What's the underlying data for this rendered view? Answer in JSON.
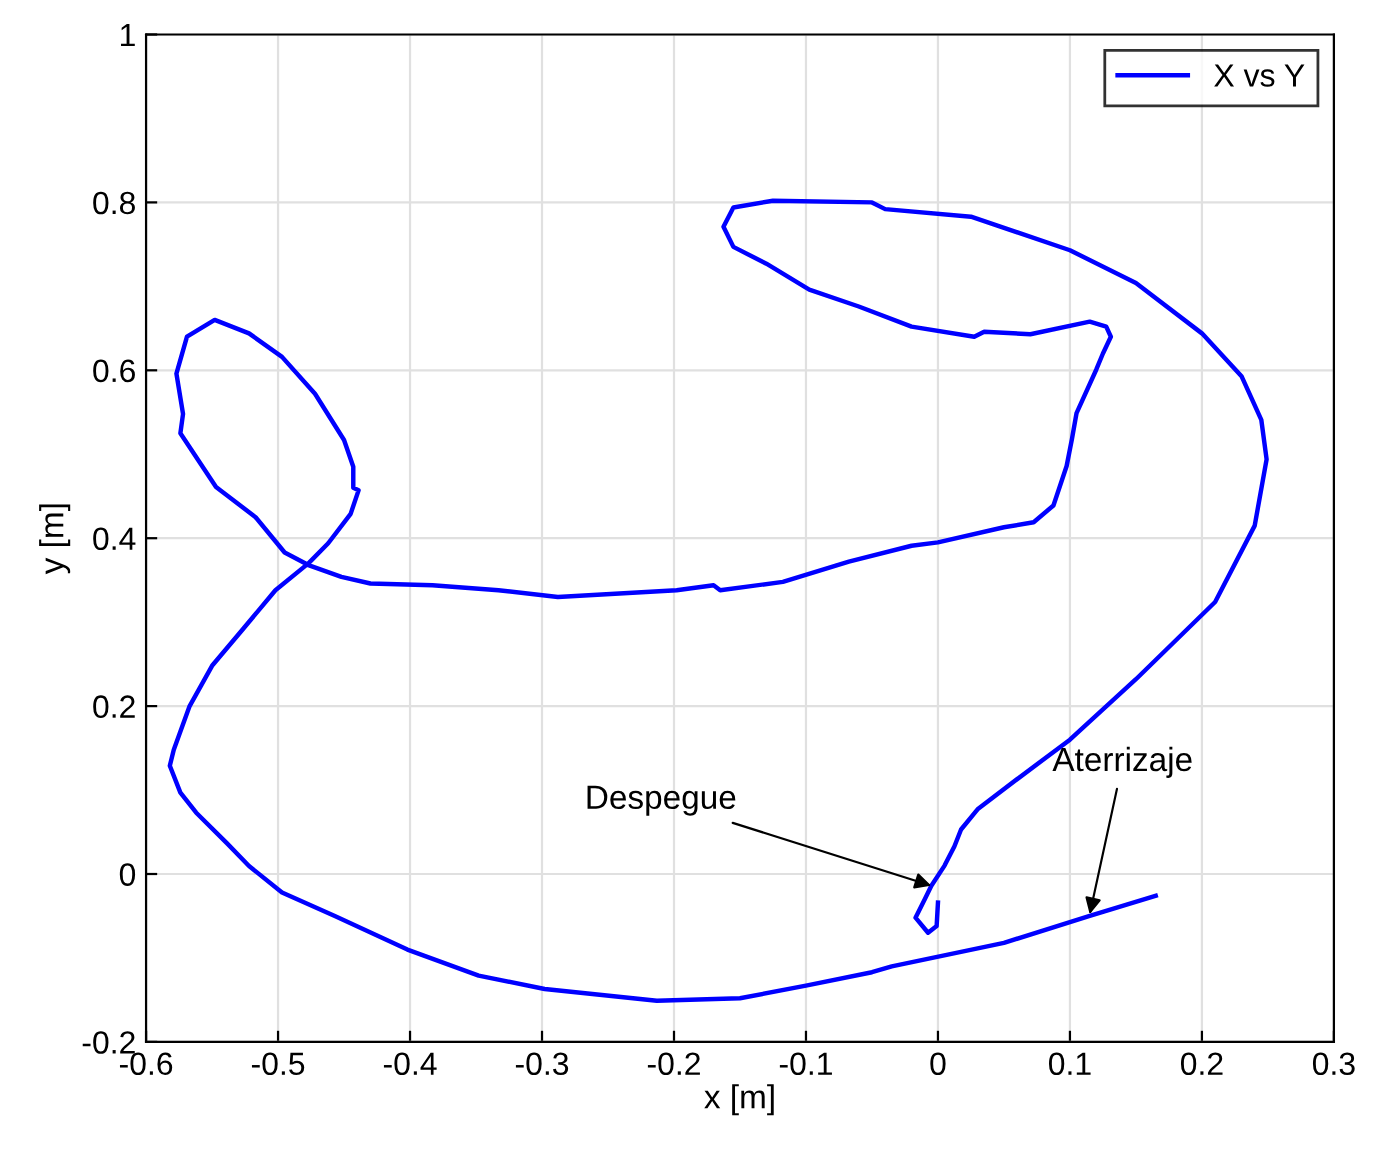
{
  "chart_data": {
    "type": "line",
    "xlabel": "x [m]",
    "ylabel": "y [m]",
    "xlim": [
      -0.6,
      0.3
    ],
    "ylim": [
      -0.2,
      1
    ],
    "xticks": [
      -0.6,
      -0.5,
      -0.4,
      -0.3,
      -0.2,
      -0.1,
      0,
      0.1,
      0.2,
      0.3
    ],
    "yticks": [
      -0.2,
      0,
      0.2,
      0.4,
      0.6,
      0.8,
      1
    ],
    "grid": true,
    "legend": "top right",
    "series": [
      {
        "name": "X vs Y",
        "color": "#0000ff",
        "x": [
          0.0,
          -0.001,
          -0.0075,
          -0.017,
          -0.01,
          -0.005,
          0.005,
          0.0125,
          0.0175,
          0.03,
          0.06,
          0.1,
          0.15,
          0.21,
          0.24,
          0.249,
          0.245,
          0.23,
          0.2,
          0.15,
          0.1,
          0.025,
          -0.04,
          -0.05,
          -0.125,
          -0.155,
          -0.1625,
          -0.155,
          -0.13,
          -0.0975,
          -0.06,
          -0.02,
          0.0275,
          0.035,
          0.07,
          0.115,
          0.1275,
          0.131,
          0.125,
          0.12,
          0.105,
          0.1015,
          0.0975,
          0.0875,
          0.0725,
          0.05,
          0.0,
          -0.02,
          -0.0675,
          -0.1175,
          -0.165,
          -0.17,
          -0.198,
          -0.288,
          -0.333,
          -0.383,
          -0.43,
          -0.452,
          -0.477,
          -0.495,
          -0.517,
          -0.547,
          -0.574,
          -0.572,
          -0.577,
          -0.569,
          -0.548,
          -0.522,
          -0.497,
          -0.472,
          -0.45,
          -0.443,
          -0.443,
          -0.439,
          -0.445,
          -0.462,
          -0.477,
          -0.502,
          -0.527,
          -0.55,
          -0.567,
          -0.579,
          -0.582,
          -0.574,
          -0.562,
          -0.539,
          -0.522,
          -0.497,
          -0.457,
          -0.402,
          -0.348,
          -0.298,
          -0.213,
          -0.15,
          -0.1,
          -0.05,
          -0.035,
          0.05,
          0.115,
          0.165
        ],
        "values": [
          -0.034,
          -0.062,
          -0.07,
          -0.052,
          -0.03,
          -0.014,
          0.01,
          0.033,
          0.053,
          0.077,
          0.113,
          0.16,
          0.232,
          0.324,
          0.415,
          0.494,
          0.541,
          0.593,
          0.644,
          0.704,
          0.743,
          0.783,
          0.792,
          0.8,
          0.802,
          0.794,
          0.771,
          0.747,
          0.727,
          0.696,
          0.676,
          0.652,
          0.64,
          0.646,
          0.643,
          0.658,
          0.652,
          0.64,
          0.62,
          0.601,
          0.549,
          0.518,
          0.486,
          0.439,
          0.419,
          0.413,
          0.395,
          0.391,
          0.372,
          0.348,
          0.338,
          0.344,
          0.338,
          0.33,
          0.338,
          0.344,
          0.346,
          0.354,
          0.368,
          0.383,
          0.425,
          0.461,
          0.525,
          0.548,
          0.596,
          0.64,
          0.66,
          0.644,
          0.616,
          0.572,
          0.517,
          0.485,
          0.46,
          0.457,
          0.429,
          0.394,
          0.37,
          0.338,
          0.291,
          0.248,
          0.2,
          0.148,
          0.129,
          0.097,
          0.073,
          0.037,
          0.0095,
          -0.022,
          -0.05,
          -0.09,
          -0.121,
          -0.137,
          -0.151,
          -0.148,
          -0.133,
          -0.117,
          -0.11,
          -0.082,
          -0.05,
          -0.026
        ]
      }
    ],
    "annotations": [
      {
        "text": "Despegue",
        "x": -0.005,
        "y": -0.014
      },
      {
        "text": "Aterrizaje",
        "x": 0.115,
        "y": -0.048
      }
    ]
  }
}
